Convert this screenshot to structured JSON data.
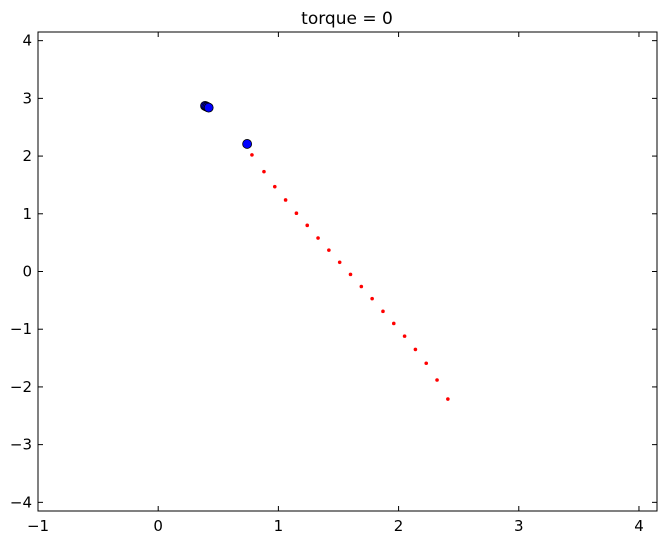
{
  "chart_data": {
    "type": "scatter",
    "title": "torque = 0",
    "xlabel": "",
    "ylabel": "",
    "xlim": [
      -1,
      4.15
    ],
    "ylim": [
      -4.15,
      4.15
    ],
    "x_ticks": [
      -1,
      0,
      1,
      2,
      3,
      4
    ],
    "y_ticks": [
      -4,
      -3,
      -2,
      -1,
      0,
      1,
      2,
      3,
      4
    ],
    "x_tick_labels": [
      "−1",
      "0",
      "1",
      "2",
      "3",
      "4"
    ],
    "y_tick_labels": [
      "−4",
      "−3",
      "−2",
      "−1",
      "0",
      "1",
      "2",
      "3",
      "4"
    ],
    "grid": false,
    "legend": "none",
    "series": [
      {
        "marker": "large-circle",
        "color": "#0000ff",
        "edge_color": "#000000",
        "points": [
          [
            0.39,
            2.87
          ],
          [
            0.4,
            2.86
          ],
          [
            0.41,
            2.85
          ],
          [
            0.42,
            2.84
          ],
          [
            0.74,
            2.21
          ]
        ]
      },
      {
        "marker": "small-dot",
        "color": "#ff0000",
        "points": [
          [
            0.78,
            2.02
          ],
          [
            0.88,
            1.73
          ],
          [
            0.97,
            1.47
          ],
          [
            1.06,
            1.24
          ],
          [
            1.15,
            1.01
          ],
          [
            1.24,
            0.8
          ],
          [
            1.33,
            0.58
          ],
          [
            1.42,
            0.37
          ],
          [
            1.51,
            0.16
          ],
          [
            1.6,
            -0.05
          ],
          [
            1.69,
            -0.26
          ],
          [
            1.78,
            -0.47
          ],
          [
            1.87,
            -0.69
          ],
          [
            1.96,
            -0.9
          ],
          [
            2.05,
            -1.12
          ],
          [
            2.14,
            -1.35
          ],
          [
            2.23,
            -1.59
          ],
          [
            2.32,
            -1.88
          ],
          [
            2.41,
            -2.21
          ]
        ]
      }
    ]
  }
}
